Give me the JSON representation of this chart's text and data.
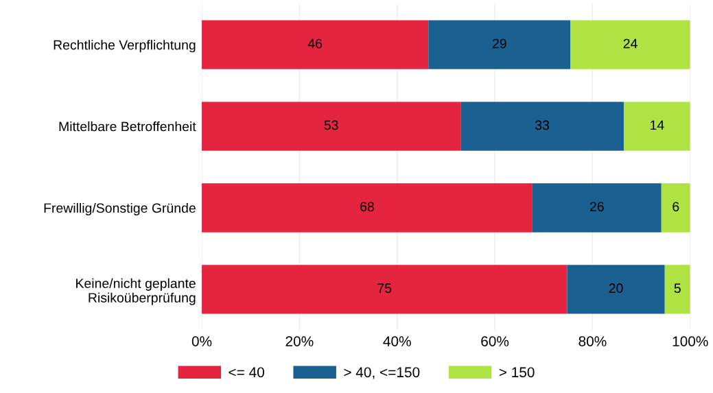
{
  "chart_data": {
    "type": "bar",
    "orientation": "horizontal",
    "stacked": true,
    "categories": [
      "Rechtliche Verpflichtung",
      "Mittelbare Betroffenheit",
      "Frewillig/Sonstige Gründe",
      "Keine/nicht geplante\nRisikoüberprüfung"
    ],
    "series": [
      {
        "name": "<= 40",
        "color": "#e52440",
        "values": [
          46.4,
          53.0,
          67.7,
          74.8
        ],
        "value_labels": [
          "46",
          "53",
          "68",
          "75"
        ]
      },
      {
        "name": "> 40, <=150",
        "color": "#1a6090",
        "values": [
          29.1,
          33.4,
          26.4,
          20.0
        ],
        "value_labels": [
          "29",
          "33",
          "26",
          "20"
        ]
      },
      {
        "name": "> 150",
        "color": "#aee343",
        "values": [
          24.5,
          13.6,
          5.9,
          5.2
        ],
        "value_labels": [
          "24",
          "14",
          "6",
          "5"
        ]
      }
    ],
    "xlim": [
      0,
      100
    ],
    "xticks": [
      {
        "value": 0,
        "label": "0%"
      },
      {
        "value": 20,
        "label": "20%"
      },
      {
        "value": 40,
        "label": "40%"
      },
      {
        "value": 60,
        "label": "60%"
      },
      {
        "value": 80,
        "label": "80%"
      },
      {
        "value": 100,
        "label": "100%"
      }
    ],
    "grid": "x",
    "legend": "bottom"
  }
}
